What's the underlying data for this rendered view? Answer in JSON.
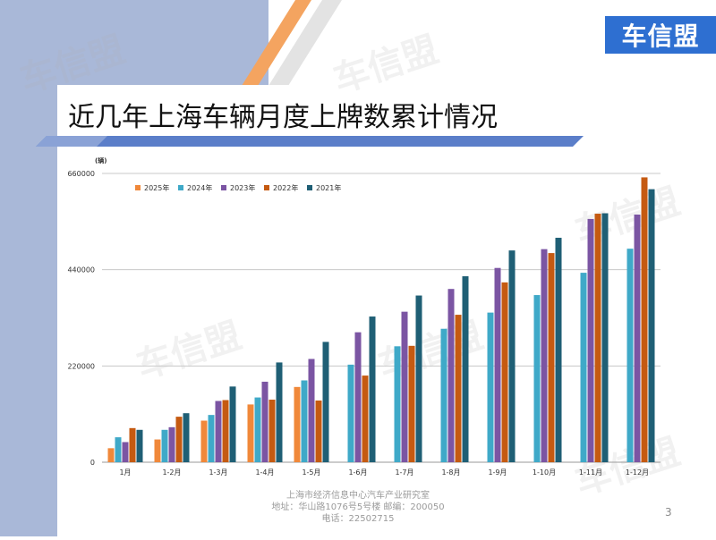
{
  "slide": {
    "title": "近几年上海车辆月度上牌数累计情况",
    "logo_text": "车信盟",
    "watermark": "车信盟",
    "footer_lines": [
      "上海市经济信息中心汽车产业研究室",
      "地址：华山路1076号5号楼    邮编：200050",
      "电话：22502715"
    ],
    "page_number": "3"
  },
  "colors": {
    "left_band": "#a9b8d8",
    "logo_bg": "#2e6fd1",
    "stripe_orange": "#f4a460",
    "stripe_gray": "#e3e3e3",
    "title_bar": "#5b7ec9"
  },
  "chart_data": {
    "type": "bar",
    "unit_label": "(辆)",
    "categories": [
      "1月",
      "1-2月",
      "1-3月",
      "1-4月",
      "1-5月",
      "1-6月",
      "1-7月",
      "1-8月",
      "1-9月",
      "1-10月",
      "1-11月",
      "1-12月"
    ],
    "ylim": [
      0,
      660000
    ],
    "yticks": [
      0,
      220000,
      440000,
      660000
    ],
    "ytick_labels": [
      "0",
      "220000",
      "440000",
      "660000"
    ],
    "grid": true,
    "legend_position": "top-left",
    "series": [
      {
        "name": "2025年",
        "color": "#f0883a",
        "values": [
          32000,
          52000,
          95000,
          132000,
          172000,
          null,
          null,
          null,
          null,
          null,
          null,
          null
        ]
      },
      {
        "name": "2024年",
        "color": "#3fa9c8",
        "values": [
          57000,
          74000,
          108000,
          148000,
          187000,
          223000,
          265000,
          305000,
          342000,
          382000,
          433000,
          488000
        ]
      },
      {
        "name": "2023年",
        "color": "#7b55a3",
        "values": [
          46000,
          80000,
          140000,
          184000,
          236000,
          297000,
          344000,
          396000,
          444000,
          487000,
          556000,
          566000
        ]
      },
      {
        "name": "2022年",
        "color": "#c55a11",
        "values": [
          78000,
          104000,
          142000,
          143000,
          141000,
          198000,
          266000,
          337000,
          411000,
          478000,
          568000,
          651000
        ]
      },
      {
        "name": "2021年",
        "color": "#1f5f75",
        "values": [
          74000,
          112000,
          173000,
          228000,
          275000,
          333000,
          381000,
          425000,
          484000,
          513000,
          569000,
          624000
        ]
      }
    ]
  }
}
